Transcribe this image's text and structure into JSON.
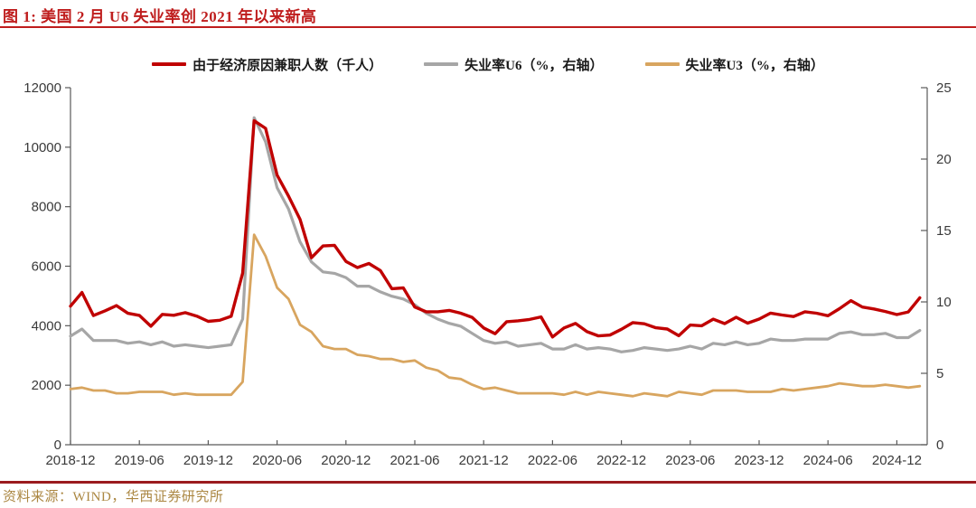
{
  "header": {
    "title": "图 1: 美国 2 月 U6 失业率创 2021 年以来新高"
  },
  "footer": {
    "source": "资料来源：WIND，华西证券研究所"
  },
  "colors": {
    "title_red": "#bf1d1d",
    "top_rule": "#bf1d1d",
    "bottom_rule": "#9b1b1e",
    "footer_gold": "#ab8742",
    "axis_line": "#595959",
    "series_red": "#c00000",
    "series_gray": "#a6a6a6",
    "series_tan": "#d8a55f"
  },
  "chart_data": {
    "type": "line",
    "title": "美国2月U6失业率创2021年以来新高",
    "grid": false,
    "legend_position": "top-center",
    "left_axis": {
      "min": 0,
      "max": 12000,
      "step": 2000,
      "tick_labels": [
        "0",
        "2000",
        "4000",
        "6000",
        "8000",
        "10000",
        "12000"
      ]
    },
    "right_axis": {
      "min": 0,
      "max": 25,
      "step": 5,
      "tick_labels": [
        "0",
        "5",
        "10",
        "15",
        "20",
        "25"
      ]
    },
    "x_tick_labels": [
      "2018-12",
      "2019-06",
      "2019-12",
      "2020-06",
      "2020-12",
      "2021-06",
      "2021-12",
      "2022-06",
      "2022-12",
      "2023-06",
      "2023-12",
      "2024-06",
      "2024-12"
    ],
    "x": [
      "2018-12",
      "2019-01",
      "2019-02",
      "2019-03",
      "2019-04",
      "2019-05",
      "2019-06",
      "2019-07",
      "2019-08",
      "2019-09",
      "2019-10",
      "2019-11",
      "2019-12",
      "2020-01",
      "2020-02",
      "2020-03",
      "2020-04",
      "2020-05",
      "2020-06",
      "2020-07",
      "2020-08",
      "2020-09",
      "2020-10",
      "2020-11",
      "2020-12",
      "2021-01",
      "2021-02",
      "2021-03",
      "2021-04",
      "2021-05",
      "2021-06",
      "2021-07",
      "2021-08",
      "2021-09",
      "2021-10",
      "2021-11",
      "2021-12",
      "2022-01",
      "2022-02",
      "2022-03",
      "2022-04",
      "2022-05",
      "2022-06",
      "2022-07",
      "2022-08",
      "2022-09",
      "2022-10",
      "2022-11",
      "2022-12",
      "2023-01",
      "2023-02",
      "2023-03",
      "2023-04",
      "2023-05",
      "2023-06",
      "2023-07",
      "2023-08",
      "2023-09",
      "2023-10",
      "2023-11",
      "2023-12",
      "2024-01",
      "2024-02",
      "2024-03",
      "2024-04",
      "2024-05",
      "2024-06",
      "2024-07",
      "2024-08",
      "2024-09",
      "2024-10",
      "2024-11",
      "2024-12",
      "2025-01",
      "2025-02"
    ],
    "series": [
      {
        "key": "pter",
        "name": "由于经济原因兼职人数（千人）",
        "axis": "left",
        "color": "#c00000",
        "width": 3.4,
        "values": [
          4657,
          5115,
          4342,
          4499,
          4676,
          4416,
          4347,
          3983,
          4381,
          4350,
          4438,
          4322,
          4148,
          4182,
          4318,
          5765,
          10887,
          10633,
          9062,
          8355,
          7576,
          6286,
          6682,
          6701,
          6161,
          5955,
          6090,
          5855,
          5244,
          5271,
          4627,
          4470,
          4468,
          4514,
          4421,
          4282,
          3925,
          3732,
          4135,
          4166,
          4211,
          4296,
          3621,
          3924,
          4077,
          3800,
          3659,
          3685,
          3878,
          4105,
          4066,
          3931,
          3888,
          3663,
          4021,
          3999,
          4221,
          4072,
          4283,
          4086,
          4224,
          4424,
          4358,
          4309,
          4469,
          4419,
          4336,
          4573,
          4843,
          4628,
          4562,
          4477,
          4375,
          4464,
          4940
        ]
      },
      {
        "key": "u6",
        "name": "失业率U6（%，右轴）",
        "axis": "right",
        "color": "#a6a6a6",
        "width": 3.2,
        "values": [
          7.6,
          8.1,
          7.3,
          7.3,
          7.3,
          7.1,
          7.2,
          7.0,
          7.2,
          6.9,
          7.0,
          6.9,
          6.8,
          6.9,
          7.0,
          8.8,
          22.9,
          21.2,
          18.0,
          16.5,
          14.2,
          12.8,
          12.1,
          12.0,
          11.7,
          11.1,
          11.1,
          10.7,
          10.4,
          10.2,
          9.8,
          9.2,
          8.8,
          8.5,
          8.3,
          7.8,
          7.3,
          7.1,
          7.2,
          6.9,
          7.0,
          7.1,
          6.7,
          6.7,
          7.0,
          6.7,
          6.8,
          6.7,
          6.5,
          6.6,
          6.8,
          6.7,
          6.6,
          6.7,
          6.9,
          6.7,
          7.1,
          7.0,
          7.2,
          7.0,
          7.1,
          7.4,
          7.3,
          7.3,
          7.4,
          7.4,
          7.4,
          7.8,
          7.9,
          7.7,
          7.7,
          7.8,
          7.5,
          7.5,
          8.0
        ]
      },
      {
        "key": "u3",
        "name": "失业率U3（%，右轴）",
        "axis": "right",
        "color": "#d8a55f",
        "width": 2.8,
        "values": [
          3.9,
          4.0,
          3.8,
          3.8,
          3.6,
          3.6,
          3.7,
          3.7,
          3.7,
          3.5,
          3.6,
          3.5,
          3.5,
          3.5,
          3.5,
          4.4,
          14.7,
          13.2,
          11.0,
          10.2,
          8.4,
          7.9,
          6.9,
          6.7,
          6.7,
          6.3,
          6.2,
          6.0,
          6.0,
          5.8,
          5.9,
          5.4,
          5.2,
          4.7,
          4.6,
          4.2,
          3.9,
          4.0,
          3.8,
          3.6,
          3.6,
          3.6,
          3.6,
          3.5,
          3.7,
          3.5,
          3.7,
          3.6,
          3.5,
          3.4,
          3.6,
          3.5,
          3.4,
          3.7,
          3.6,
          3.5,
          3.8,
          3.8,
          3.8,
          3.7,
          3.7,
          3.7,
          3.9,
          3.8,
          3.9,
          4.0,
          4.1,
          4.3,
          4.2,
          4.1,
          4.1,
          4.2,
          4.1,
          4.0,
          4.1
        ]
      }
    ]
  }
}
